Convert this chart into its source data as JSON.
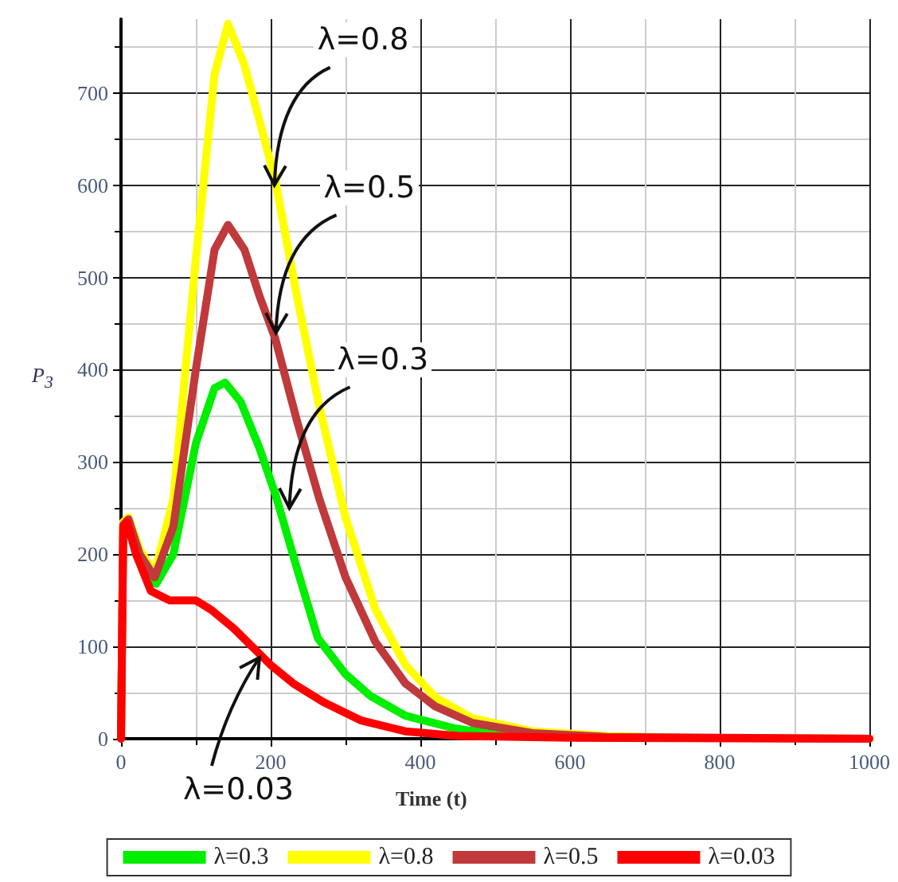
{
  "chart_data": {
    "type": "line",
    "xlabel": "Time (t)",
    "ylabel": "P$_{3}$",
    "xlim": [
      0,
      1000
    ],
    "xticks": [
      0,
      200,
      400,
      600,
      800,
      1000
    ],
    "ylim": [
      0,
      780
    ],
    "yticks": [
      0,
      100,
      200,
      300,
      400,
      500,
      600,
      700
    ],
    "grid": true,
    "legend": "bottom",
    "marker": "none",
    "line_style": "solid",
    "series": [
      {
        "name": "λ=0.3",
        "color": "#00ee00",
        "x": [
          25,
          47,
          70,
          100,
          125,
          139,
          160,
          185,
          207,
          235,
          263,
          300,
          334,
          380,
          447,
          500,
          600
        ],
        "values": [
          195,
          168,
          200,
          320,
          380,
          386,
          365,
          315,
          263,
          185,
          109,
          70,
          46,
          25,
          11,
          5,
          2
        ]
      },
      {
        "name": "λ=0.8",
        "color": "#ffff00",
        "x": [
          0,
          3,
          10,
          25,
          45,
          70,
          100,
          125,
          143,
          165,
          185,
          206,
          235,
          265,
          300,
          340,
          380,
          420,
          470,
          550,
          650,
          750,
          1000
        ],
        "values": [
          0,
          235,
          240,
          205,
          180,
          260,
          520,
          720,
          775,
          730,
          670,
          606,
          480,
          360,
          240,
          140,
          80,
          45,
          22,
          8,
          3,
          1,
          0
        ]
      },
      {
        "name": "λ=0.5",
        "color": "#c0393b",
        "x": [
          0,
          3,
          10,
          25,
          45,
          70,
          100,
          125,
          143,
          165,
          185,
          206,
          235,
          265,
          300,
          340,
          380,
          420,
          470,
          550,
          650,
          1000
        ],
        "values": [
          0,
          232,
          238,
          200,
          175,
          230,
          400,
          530,
          557,
          530,
          480,
          434,
          345,
          260,
          175,
          105,
          60,
          35,
          17,
          6,
          2,
          0
        ]
      },
      {
        "name": "λ=0.03",
        "color": "#ff0000",
        "x": [
          0,
          3,
          8,
          20,
          40,
          65,
          100,
          120,
          150,
          175,
          200,
          230,
          270,
          320,
          380,
          450,
          600,
          1000
        ],
        "values": [
          0,
          230,
          235,
          200,
          160,
          150,
          150,
          140,
          120,
          100,
          80,
          60,
          40,
          20,
          8,
          3,
          1,
          0
        ]
      }
    ],
    "annotations": [
      {
        "text": "λ=0.8",
        "x": 205,
        "y": 600
      },
      {
        "text": "λ=0.5",
        "x": 207,
        "y": 440
      },
      {
        "text": "λ=0.3",
        "x": 225,
        "y": 250
      },
      {
        "text": "λ=0.03",
        "x": 185,
        "y": 88
      }
    ]
  }
}
